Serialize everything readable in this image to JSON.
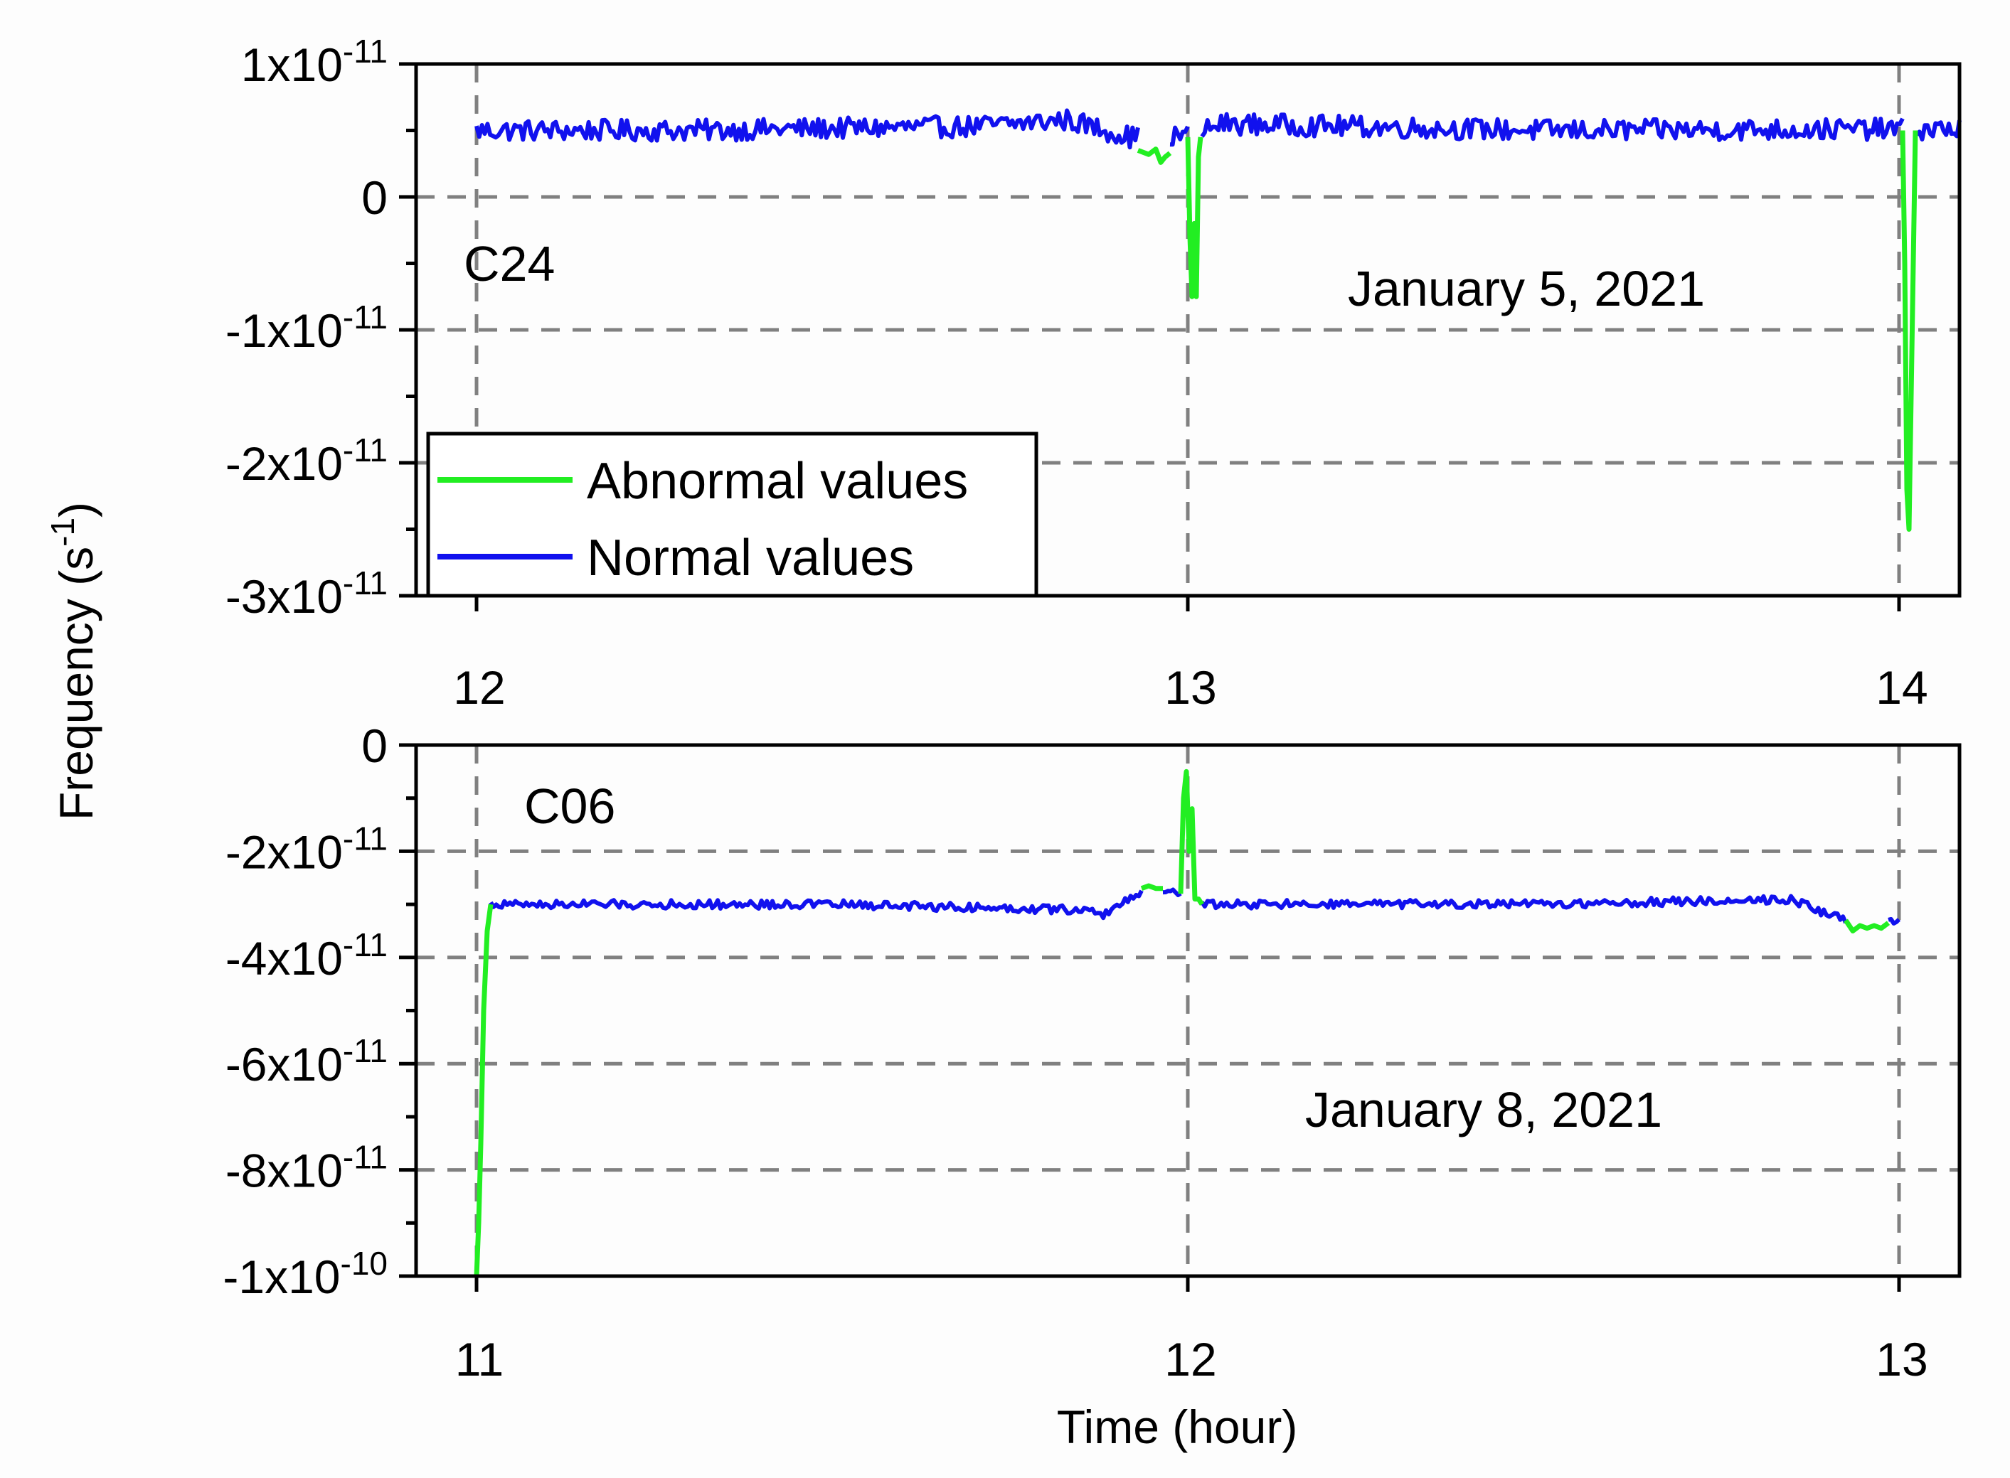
{
  "chart_data": {
    "type": "line",
    "ylabel": "Frequency (s-1)",
    "ylabel_parts": {
      "base": "Frequency (s",
      "sup": "-1",
      "close": ")"
    },
    "xlabel": "Time (hour)",
    "legend": {
      "placement": "bottom-left of top panel",
      "entries": [
        {
          "name": "Abnormal values",
          "color": "#22ee22"
        },
        {
          "name": "Normal values",
          "color": "#1111ee"
        }
      ]
    },
    "colors": {
      "normal": "#1111ee",
      "abnormal": "#22ee22",
      "grid": "#808080",
      "axis": "#000000"
    },
    "panels": [
      {
        "id": "top",
        "label": "C24",
        "date": "January 5, 2021",
        "xlim": [
          11.915,
          14.085
        ],
        "ylim": [
          -3e-11,
          1e-11
        ],
        "xticks": [
          12,
          13,
          14
        ],
        "xtick_labels": [
          "12",
          "13",
          "14"
        ],
        "yticks": [
          1e-11,
          0,
          -1e-11,
          -2e-11,
          -3e-11
        ],
        "ytick_labels": [
          {
            "base": "1x10",
            "exp": "-11"
          },
          {
            "base": "0",
            "exp": ""
          },
          {
            "base": "-1x10",
            "exp": "-11"
          },
          {
            "base": "-2x10",
            "exp": "-11"
          },
          {
            "base": "-3x10",
            "exp": "-11"
          }
        ],
        "y_minor_step": 5e-12,
        "grid": true,
        "baseline": [
          [
            12.0,
            5e-12
          ],
          [
            12.3,
            5e-12
          ],
          [
            12.7,
            5.3e-12
          ],
          [
            12.83,
            5.8e-12
          ],
          [
            12.92,
            4.5e-12
          ],
          [
            13.0,
            4.6e-12
          ],
          [
            13.05,
            5.5e-12
          ],
          [
            13.5,
            5e-12
          ],
          [
            14.0,
            5.1e-12
          ],
          [
            14.085,
            5.1e-12
          ]
        ],
        "noise_amp": 8e-13,
        "normal_ranges": [
          [
            12.0,
            12.93
          ],
          [
            12.975,
            13.0
          ],
          [
            13.02,
            14.005
          ],
          [
            14.025,
            14.085
          ]
        ],
        "abnormal_series": [
          [
            [
              12.93,
              3.5e-12
            ],
            [
              12.945,
              3.2e-12
            ],
            [
              12.955,
              3.6e-12
            ],
            [
              12.962,
              2.6e-12
            ],
            [
              12.968,
              3e-12
            ],
            [
              12.975,
              3.3e-12
            ]
          ],
          [
            [
              13.0,
              4.5e-12
            ],
            [
              13.003,
              -3e-12
            ],
            [
              13.006,
              -7.5e-12
            ],
            [
              13.009,
              -2e-12
            ],
            [
              13.012,
              -7.5e-12
            ],
            [
              13.015,
              3e-12
            ],
            [
              13.018,
              4.5e-12
            ]
          ],
          [
            [
              14.005,
              5e-12
            ],
            [
              14.008,
              -5e-12
            ],
            [
              14.011,
              -2.2e-11
            ],
            [
              14.014,
              -2.5e-11
            ],
            [
              14.017,
              -1.5e-11
            ],
            [
              14.02,
              -5e-12
            ],
            [
              14.023,
              5e-12
            ]
          ]
        ]
      },
      {
        "id": "bottom",
        "label": "C06",
        "date": "January 8, 2021",
        "xlim": [
          10.915,
          13.085
        ],
        "ylim": [
          -1e-10,
          0
        ],
        "xticks": [
          11,
          12,
          13
        ],
        "xtick_labels": [
          "11",
          "12",
          "13"
        ],
        "yticks": [
          0,
          -2e-11,
          -4e-11,
          -6e-11,
          -8e-11,
          -1e-10
        ],
        "ytick_labels": [
          {
            "base": "0",
            "exp": ""
          },
          {
            "base": "-2x10",
            "exp": "-11"
          },
          {
            "base": "-4x10",
            "exp": "-11"
          },
          {
            "base": "-6x10",
            "exp": "-11"
          },
          {
            "base": "-8x10",
            "exp": "-11"
          },
          {
            "base": "-1x10",
            "exp": "-10"
          }
        ],
        "y_minor_step": 1e-11,
        "grid": true,
        "baseline": [
          [
            11.02,
            -3e-11
          ],
          [
            11.5,
            -3e-11
          ],
          [
            11.85,
            -3.1e-11
          ],
          [
            11.88,
            -3.2e-11
          ],
          [
            11.93,
            -2.8e-11
          ],
          [
            11.95,
            -2.7e-11
          ],
          [
            12.0,
            -2.8e-11
          ],
          [
            12.02,
            -3e-11
          ],
          [
            12.5,
            -3e-11
          ],
          [
            12.85,
            -2.9e-11
          ],
          [
            12.9,
            -3.2e-11
          ],
          [
            12.93,
            -3.3e-11
          ],
          [
            13.0,
            -3.35e-11
          ]
        ],
        "noise_amp": 8e-13,
        "normal_ranges": [
          [
            11.02,
            11.935
          ],
          [
            11.965,
            11.99
          ],
          [
            12.02,
            12.925
          ],
          [
            12.985,
            13.0
          ]
        ],
        "abnormal_series": [
          [
            [
              11.0,
              -1e-10
            ],
            [
              11.003,
              -9e-11
            ],
            [
              11.006,
              -7.5e-11
            ],
            [
              11.01,
              -5e-11
            ],
            [
              11.015,
              -3.5e-11
            ],
            [
              11.02,
              -3e-11
            ]
          ],
          [
            [
              11.935,
              -2.7e-11
            ],
            [
              11.945,
              -2.65e-11
            ],
            [
              11.955,
              -2.7e-11
            ],
            [
              11.965,
              -2.7e-11
            ]
          ],
          [
            [
              11.99,
              -2.8e-11
            ],
            [
              11.994,
              -1e-11
            ],
            [
              11.998,
              -5e-12
            ],
            [
              12.002,
              -2e-11
            ],
            [
              12.006,
              -1.2e-11
            ],
            [
              12.01,
              -2.9e-11
            ],
            [
              12.015,
              -2.9e-11
            ],
            [
              12.02,
              -3e-11
            ]
          ],
          [
            [
              12.925,
              -3.3e-11
            ],
            [
              12.935,
              -3.5e-11
            ],
            [
              12.945,
              -3.4e-11
            ],
            [
              12.955,
              -3.45e-11
            ],
            [
              12.965,
              -3.4e-11
            ],
            [
              12.975,
              -3.45e-11
            ],
            [
              12.985,
              -3.35e-11
            ]
          ]
        ]
      }
    ]
  }
}
